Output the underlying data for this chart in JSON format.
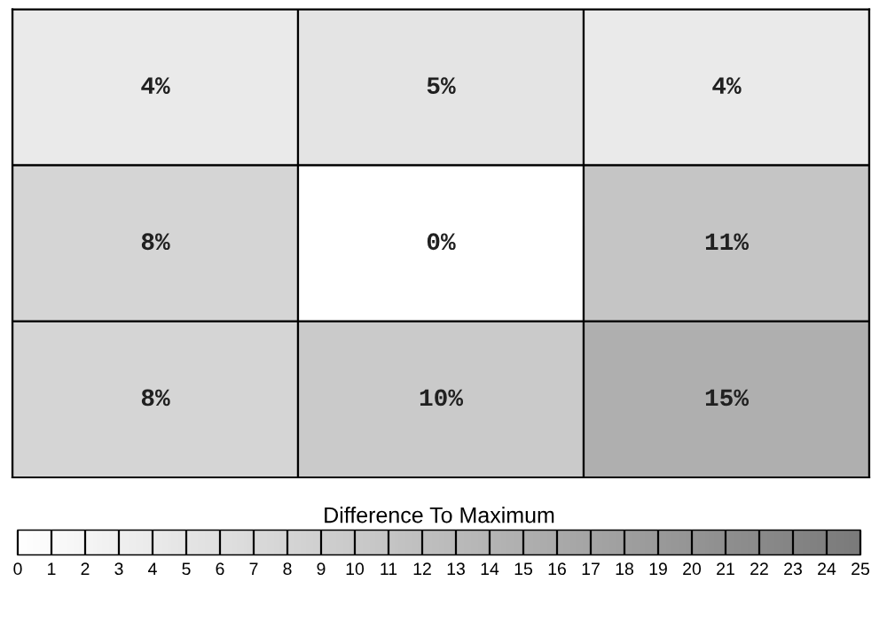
{
  "chart_data": {
    "type": "heatmap",
    "clabel": "Difference To Maximum",
    "categories": [
      null,
      null,
      null
    ],
    "y_categories": [
      null,
      null,
      null
    ],
    "cells": [
      [
        4,
        5,
        4
      ],
      [
        8,
        0,
        11
      ],
      [
        8,
        10,
        15
      ]
    ],
    "cell_labels": [
      [
        "4%",
        "5%",
        "4%"
      ],
      [
        "8%",
        "0%",
        "11%"
      ],
      [
        "8%",
        "10%",
        "15%"
      ]
    ],
    "clim": [
      0,
      25
    ],
    "cticks": [
      0,
      1,
      2,
      3,
      4,
      5,
      6,
      7,
      8,
      9,
      10,
      11,
      12,
      13,
      14,
      15,
      16,
      17,
      18,
      19,
      20,
      21,
      22,
      23,
      24,
      25
    ]
  }
}
